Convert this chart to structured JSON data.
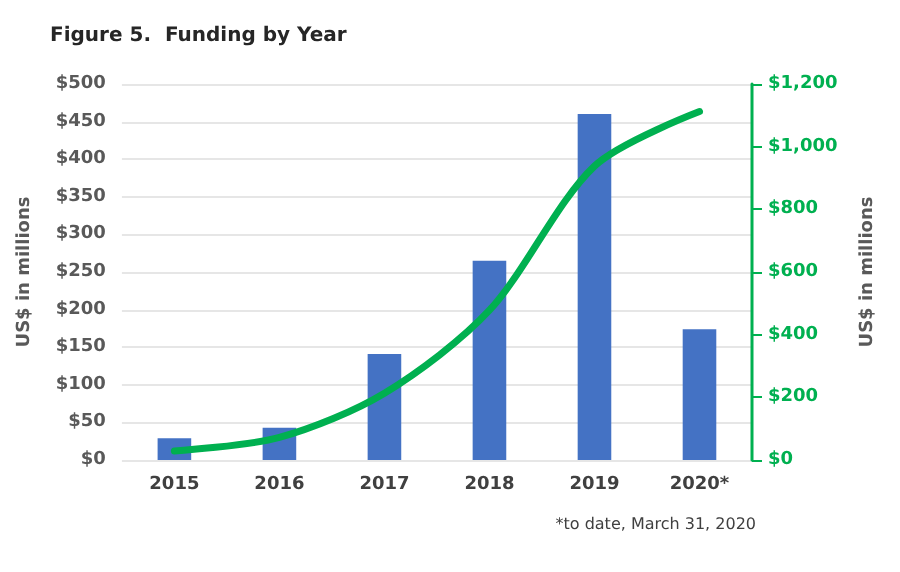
{
  "chart_data": {
    "type": "bar",
    "title": "Figure 5.  Funding by Year",
    "ylabel": "US$ in millions",
    "y2label": "US$ in millions",
    "categories": [
      "2015",
      "2016",
      "2017",
      "2018",
      "2019",
      "2020*"
    ],
    "series": [
      {
        "color": "#4472c4",
        "values": [
          29,
          43,
          141,
          265,
          460,
          174
        ]
      },
      {
        "type": "line",
        "axis": "y2",
        "color": "#00b050",
        "values": [
          29,
          72,
          213,
          478,
          938,
          1112
        ]
      }
    ],
    "ylim": [
      0,
      500
    ],
    "yticks": [
      {
        "value": 0,
        "label": "$0"
      },
      {
        "value": 50,
        "label": "$50"
      },
      {
        "value": 100,
        "label": "$100"
      },
      {
        "value": 150,
        "label": "$150"
      },
      {
        "value": 200,
        "label": "$200"
      },
      {
        "value": 250,
        "label": "$250"
      },
      {
        "value": 300,
        "label": "$300"
      },
      {
        "value": 350,
        "label": "$350"
      },
      {
        "value": 400,
        "label": "$400"
      },
      {
        "value": 450,
        "label": "$450"
      },
      {
        "value": 500,
        "label": "$500"
      }
    ],
    "y2lim": [
      0,
      1200
    ],
    "y2ticks": [
      {
        "value": 0,
        "label": "$0"
      },
      {
        "value": 200,
        "label": "$200"
      },
      {
        "value": 400,
        "label": "$400"
      },
      {
        "value": 600,
        "label": "$600"
      },
      {
        "value": 800,
        "label": "$800"
      },
      {
        "value": 1000,
        "label": "$1,000"
      },
      {
        "value": 1200,
        "label": "$1,200"
      }
    ],
    "annotations": [
      "*to date, March 31, 2020"
    ],
    "grid": "y",
    "marker": "none",
    "line_style": "solid"
  }
}
